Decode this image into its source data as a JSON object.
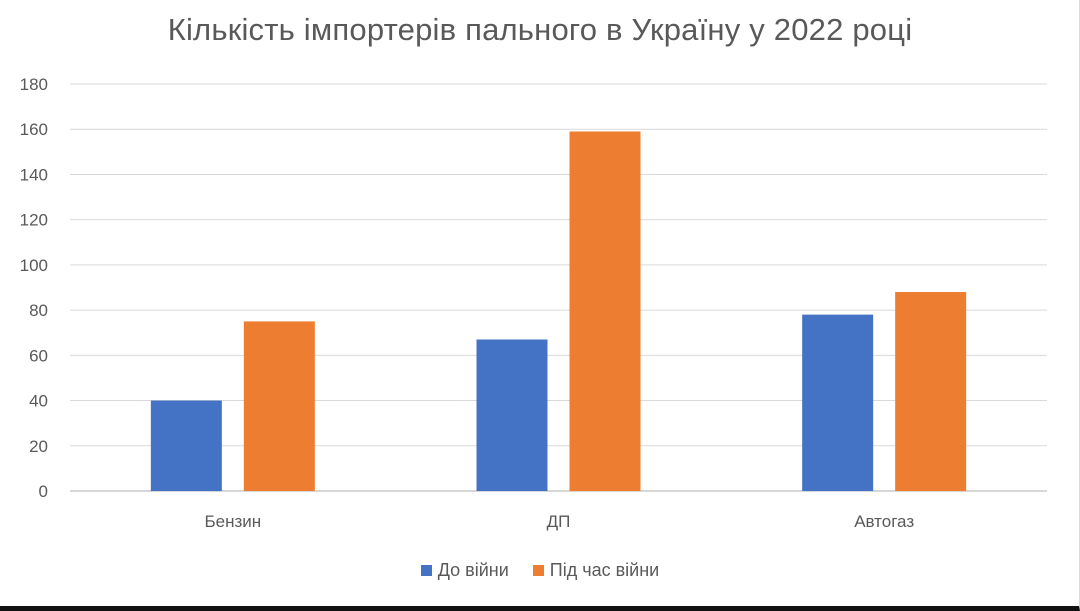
{
  "chart_data": {
    "type": "bar",
    "title": "Кількість імпортерів пального в Україну у 2022 році",
    "categories": [
      "Бензин",
      "ДП",
      "Автогаз"
    ],
    "series": [
      {
        "name": "До війни",
        "values": [
          40,
          67,
          78
        ],
        "color": "#4472c4"
      },
      {
        "name": "Під час війни",
        "values": [
          75,
          159,
          88
        ],
        "color": "#ed7d31"
      }
    ],
    "xlabel": "",
    "ylabel": "",
    "ylim": [
      0,
      180
    ],
    "yticks": [
      0,
      20,
      40,
      60,
      80,
      100,
      120,
      140,
      160,
      180
    ],
    "grid": true,
    "legend_position": "bottom"
  }
}
